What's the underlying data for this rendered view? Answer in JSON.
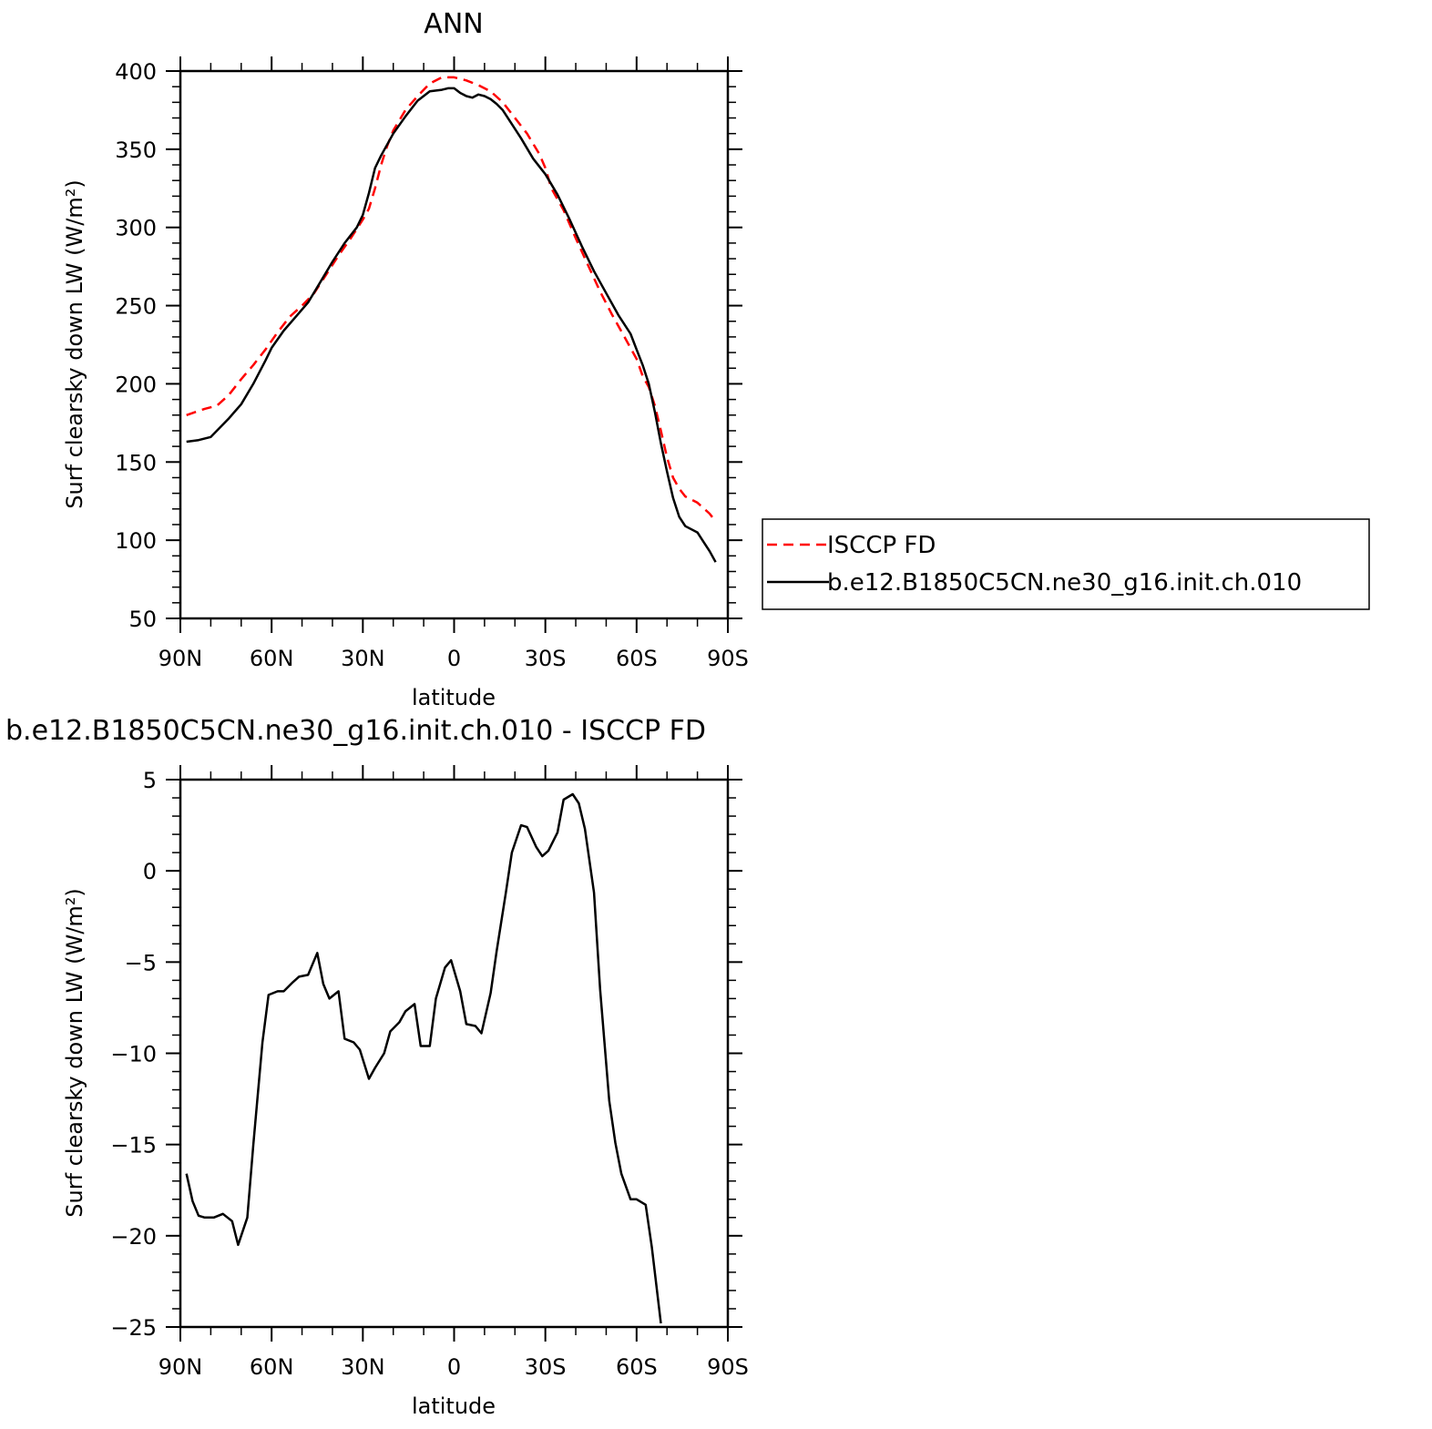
{
  "chart_data": [
    {
      "type": "line",
      "title": "ANN",
      "xlabel": "latitude",
      "ylabel": "Surf clearsky down LW (W/m²)",
      "xlim": [
        90,
        -90
      ],
      "ylim": [
        50,
        400
      ],
      "x_ticks": [
        {
          "value": 90,
          "label": "90N"
        },
        {
          "value": 60,
          "label": "60N"
        },
        {
          "value": 30,
          "label": "30N"
        },
        {
          "value": 0,
          "label": "0"
        },
        {
          "value": -30,
          "label": "30S"
        },
        {
          "value": -60,
          "label": "60S"
        },
        {
          "value": -90,
          "label": "90S"
        }
      ],
      "y_ticks": [
        {
          "value": 400,
          "label": "400"
        },
        {
          "value": 350,
          "label": "350"
        },
        {
          "value": 300,
          "label": "300"
        },
        {
          "value": 250,
          "label": "250"
        },
        {
          "value": 200,
          "label": "200"
        },
        {
          "value": 150,
          "label": "150"
        },
        {
          "value": 100,
          "label": "100"
        },
        {
          "value": 50,
          "label": "50"
        }
      ],
      "legend_position": "right",
      "series": [
        {
          "name": "ISCCP FD",
          "color": "#ff0000",
          "dash": "dashed",
          "points": [
            [
              88,
              180
            ],
            [
              82,
              184
            ],
            [
              78,
              186
            ],
            [
              74,
              193
            ],
            [
              70,
              203
            ],
            [
              66,
              212
            ],
            [
              62,
              222
            ],
            [
              58,
              233
            ],
            [
              54,
              243
            ],
            [
              50,
              250
            ],
            [
              46,
              258
            ],
            [
              42,
              270
            ],
            [
              38,
              282
            ],
            [
              34,
              293
            ],
            [
              30,
              305
            ],
            [
              28,
              312
            ],
            [
              26,
              325
            ],
            [
              24,
              340
            ],
            [
              22,
              352
            ],
            [
              20,
              362
            ],
            [
              16,
              375
            ],
            [
              12,
              384
            ],
            [
              8,
              392
            ],
            [
              4,
              396
            ],
            [
              0,
              396
            ],
            [
              -4,
              394
            ],
            [
              -8,
              391
            ],
            [
              -12,
              387
            ],
            [
              -16,
              380
            ],
            [
              -20,
              370
            ],
            [
              -24,
              360
            ],
            [
              -28,
              347
            ],
            [
              -30,
              338
            ],
            [
              -32,
              325
            ],
            [
              -36,
              311
            ],
            [
              -40,
              293
            ],
            [
              -44,
              276
            ],
            [
              -48,
              259
            ],
            [
              -52,
              244
            ],
            [
              -56,
              230
            ],
            [
              -60,
              216
            ],
            [
              -62,
              205
            ],
            [
              -64,
              198
            ],
            [
              -66,
              186
            ],
            [
              -68,
              170
            ],
            [
              -70,
              153
            ],
            [
              -72,
              140
            ],
            [
              -74,
              133
            ],
            [
              -76,
              128
            ],
            [
              -80,
              124
            ],
            [
              -84,
              117
            ],
            [
              -86,
              112
            ]
          ]
        },
        {
          "name": "b.e12.B1850C5CN.ne30_g16.init.ch.010",
          "color": "#000000",
          "dash": "solid",
          "points": [
            [
              88,
              163
            ],
            [
              84,
              164
            ],
            [
              80,
              166
            ],
            [
              78,
              170
            ],
            [
              74,
              178
            ],
            [
              70,
              187
            ],
            [
              66,
              200
            ],
            [
              62,
              215
            ],
            [
              60,
              223
            ],
            [
              56,
              234
            ],
            [
              52,
              243
            ],
            [
              48,
              252
            ],
            [
              44,
              265
            ],
            [
              40,
              278
            ],
            [
              36,
              290
            ],
            [
              32,
              300
            ],
            [
              30,
              308
            ],
            [
              28,
              322
            ],
            [
              26,
              338
            ],
            [
              24,
              346
            ],
            [
              20,
              360
            ],
            [
              16,
              371
            ],
            [
              12,
              381
            ],
            [
              8,
              387
            ],
            [
              4,
              388
            ],
            [
              2,
              389
            ],
            [
              0,
              389
            ],
            [
              -2,
              386
            ],
            [
              -4,
              384
            ],
            [
              -6,
              383
            ],
            [
              -8,
              385
            ],
            [
              -10,
              384
            ],
            [
              -12,
              382
            ],
            [
              -14,
              379
            ],
            [
              -16,
              375
            ],
            [
              -18,
              369
            ],
            [
              -22,
              357
            ],
            [
              -26,
              344
            ],
            [
              -30,
              334
            ],
            [
              -34,
              321
            ],
            [
              -38,
              305
            ],
            [
              -42,
              288
            ],
            [
              -46,
              272
            ],
            [
              -50,
              258
            ],
            [
              -54,
              244
            ],
            [
              -58,
              232
            ],
            [
              -60,
              222
            ],
            [
              -62,
              212
            ],
            [
              -64,
              200
            ],
            [
              -66,
              182
            ],
            [
              -68,
              162
            ],
            [
              -70,
              144
            ],
            [
              -72,
              127
            ],
            [
              -74,
              115
            ],
            [
              -76,
              109
            ],
            [
              -80,
              105
            ],
            [
              -82,
              99
            ],
            [
              -84,
              93
            ],
            [
              -86,
              86
            ]
          ]
        }
      ]
    },
    {
      "type": "line",
      "title": "b.e12.B1850C5CN.ne30_g16.init.ch.010 - ISCCP FD",
      "xlabel": "latitude",
      "ylabel": "Surf clearsky down LW (W/m²)",
      "xlim": [
        90,
        -90
      ],
      "ylim": [
        -25,
        5
      ],
      "x_ticks": [
        {
          "value": 90,
          "label": "90N"
        },
        {
          "value": 60,
          "label": "60N"
        },
        {
          "value": 30,
          "label": "30N"
        },
        {
          "value": 0,
          "label": "0"
        },
        {
          "value": -30,
          "label": "30S"
        },
        {
          "value": -60,
          "label": "60S"
        },
        {
          "value": -90,
          "label": "90S"
        }
      ],
      "y_ticks": [
        {
          "value": 5,
          "label": "5"
        },
        {
          "value": 0,
          "label": "0"
        },
        {
          "value": -5,
          "label": "−5"
        },
        {
          "value": -10,
          "label": "−10"
        },
        {
          "value": -15,
          "label": "−15"
        },
        {
          "value": -20,
          "label": "−20"
        },
        {
          "value": -25,
          "label": "−25"
        }
      ],
      "series": [
        {
          "color": "#000000",
          "dash": "solid",
          "points": [
            [
              88,
              -16.6
            ],
            [
              86,
              -18.1
            ],
            [
              84,
              -18.9
            ],
            [
              82,
              -19
            ],
            [
              79,
              -19
            ],
            [
              76,
              -18.8
            ],
            [
              73,
              -19.2
            ],
            [
              71,
              -20.5
            ],
            [
              68,
              -19
            ],
            [
              66,
              -15
            ],
            [
              63,
              -9.4
            ],
            [
              61,
              -6.8
            ],
            [
              58,
              -6.6
            ],
            [
              56,
              -6.6
            ],
            [
              53,
              -6.1
            ],
            [
              51,
              -5.8
            ],
            [
              48,
              -5.7
            ],
            [
              45,
              -4.5
            ],
            [
              43,
              -6.2
            ],
            [
              41,
              -7
            ],
            [
              38,
              -6.6
            ],
            [
              36,
              -9.2
            ],
            [
              33,
              -9.4
            ],
            [
              31,
              -9.8
            ],
            [
              28,
              -11.4
            ],
            [
              26,
              -10.8
            ],
            [
              23,
              -10
            ],
            [
              21,
              -8.8
            ],
            [
              18,
              -8.3
            ],
            [
              16,
              -7.7
            ],
            [
              13,
              -7.3
            ],
            [
              11,
              -9.6
            ],
            [
              8,
              -9.6
            ],
            [
              6,
              -7
            ],
            [
              3,
              -5.3
            ],
            [
              1,
              -4.9
            ],
            [
              -2,
              -6.6
            ],
            [
              -4,
              -8.4
            ],
            [
              -7,
              -8.5
            ],
            [
              -9,
              -8.9
            ],
            [
              -12,
              -6.7
            ],
            [
              -14,
              -4.4
            ],
            [
              -17,
              -1.2
            ],
            [
              -19,
              1
            ],
            [
              -22,
              2.5
            ],
            [
              -24,
              2.4
            ],
            [
              -27,
              1.3
            ],
            [
              -29,
              0.8
            ],
            [
              -31,
              1.1
            ],
            [
              -34,
              2.1
            ],
            [
              -36,
              3.9
            ],
            [
              -39,
              4.2
            ],
            [
              -41,
              3.7
            ],
            [
              -43,
              2.3
            ],
            [
              -46,
              -1.2
            ],
            [
              -48,
              -6.5
            ],
            [
              -51,
              -12.6
            ],
            [
              -53,
              -14.9
            ],
            [
              -55,
              -16.6
            ],
            [
              -58,
              -18
            ],
            [
              -60,
              -18
            ],
            [
              -63,
              -18.3
            ],
            [
              -65,
              -20.6
            ],
            [
              -68,
              -24.8
            ]
          ]
        }
      ]
    }
  ]
}
